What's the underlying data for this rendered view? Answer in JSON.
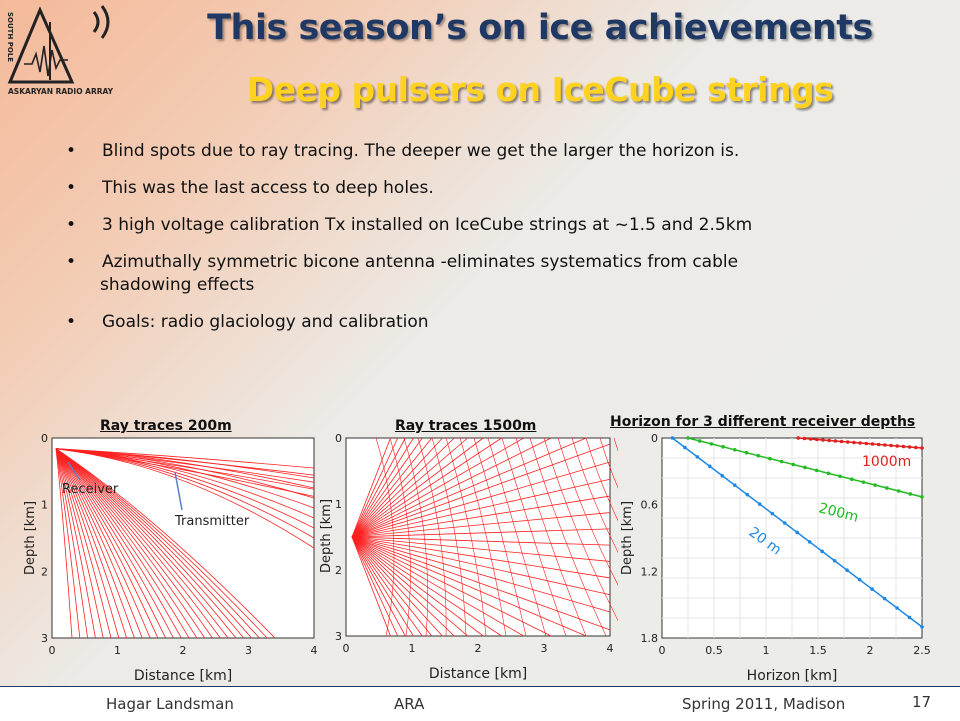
{
  "logo": {
    "text_top": "SOUTH POLE",
    "text_bottom": "ASKARYAN RADIO ARRAY"
  },
  "title": "This season’s on ice achievements",
  "subtitle": "Deep pulsers on IceCube strings",
  "bullets": [
    "Blind spots due to ray tracing. The deeper we get the larger the horizon is.",
    "This was the last access to deep  holes.",
    "3 high voltage calibration Tx installed on IceCube strings at ~1.5 and 2.5km",
    "Azimuthally symmetric bicone antenna -eliminates systematics from cable",
    "shadowing effects",
    "Goals:  radio glaciology and calibration"
  ],
  "bullet_symbol": "•",
  "chart_data": [
    {
      "type": "line",
      "title": "Ray traces 200m",
      "xlabel": "Distance [km]",
      "ylabel": "Depth [km]",
      "xticks": [
        "0",
        "1",
        "2",
        "3",
        "4"
      ],
      "yticks": [
        "0",
        "1",
        "2",
        "3"
      ],
      "xlim": [
        0,
        4
      ],
      "ylim": [
        0,
        3
      ],
      "source_depth": 0.2,
      "annotations": [
        "Receiver",
        "Transmitter"
      ],
      "color": "#ff2020"
    },
    {
      "type": "line",
      "title": "Ray traces 1500m",
      "xlabel": "Distance [km]",
      "ylabel": "Depth [km]",
      "xticks": [
        "0",
        "1",
        "2",
        "3",
        "4"
      ],
      "yticks": [
        "0",
        "1",
        "2",
        "3"
      ],
      "xlim": [
        0,
        4
      ],
      "ylim": [
        0,
        3
      ],
      "source_depth": 1.5,
      "color": "#ff2020"
    },
    {
      "type": "line",
      "title": "Horizon   for 3 different receiver depths",
      "xlabel": "Horizon [km]",
      "ylabel": "Depth [km]",
      "xticks": [
        "0",
        "0.5",
        "1",
        "1.5",
        "2",
        "2.5"
      ],
      "yticks": [
        "0",
        "0.6",
        "1.2",
        "1.8"
      ],
      "xlim": [
        0,
        2.5
      ],
      "ylim": [
        0,
        1.8
      ],
      "series": [
        {
          "name": "1000m",
          "color": "#e02020",
          "x": [
            1.31,
            2.5
          ],
          "y": [
            0.0,
            0.09
          ]
        },
        {
          "name": "200m",
          "color": "#22bb22",
          "x": [
            0.25,
            2.5
          ],
          "y": [
            0.0,
            0.53
          ]
        },
        {
          "name": "20 m",
          "color": "#1e88e5",
          "x": [
            0.1,
            2.5
          ],
          "y": [
            0.0,
            1.7
          ]
        }
      ]
    }
  ],
  "footer": {
    "author": "Hagar Landsman",
    "project": "ARA",
    "event": "Spring 2011, Madison",
    "page": "17"
  }
}
